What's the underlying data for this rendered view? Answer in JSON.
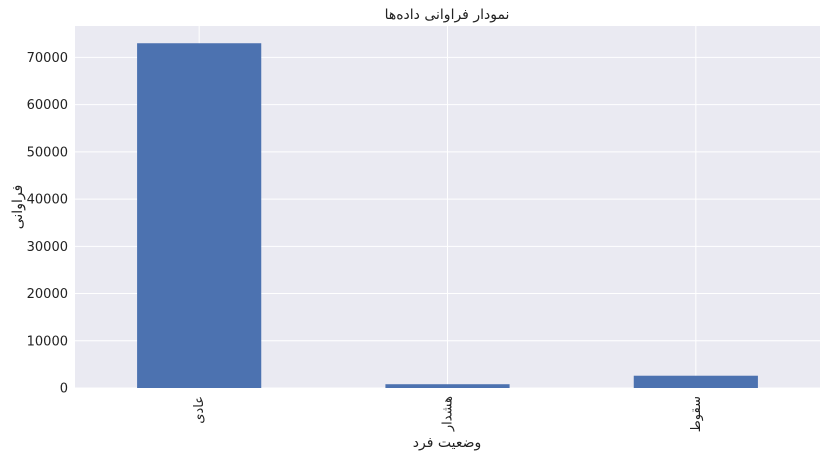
{
  "chart_data": {
    "type": "bar",
    "title": "نمودار فراوانی داده‌ها",
    "xlabel": "وضعیت فرد",
    "ylabel": "فراوانی",
    "categories": [
      "عادی",
      "هشدار",
      "سقوط"
    ],
    "values": [
      73000,
      800,
      2600
    ],
    "ylim": [
      0,
      76650
    ],
    "yticks": [
      0,
      10000,
      20000,
      30000,
      40000,
      50000,
      60000,
      70000
    ],
    "ytick_labels": [
      "0",
      "10000",
      "20000",
      "30000",
      "40000",
      "50000",
      "60000",
      "70000"
    ],
    "grid": true,
    "legend": "none",
    "colors": {
      "bar": "#4c72b0",
      "plot_background": "#eaeaf2",
      "grid": "#ffffff"
    }
  }
}
